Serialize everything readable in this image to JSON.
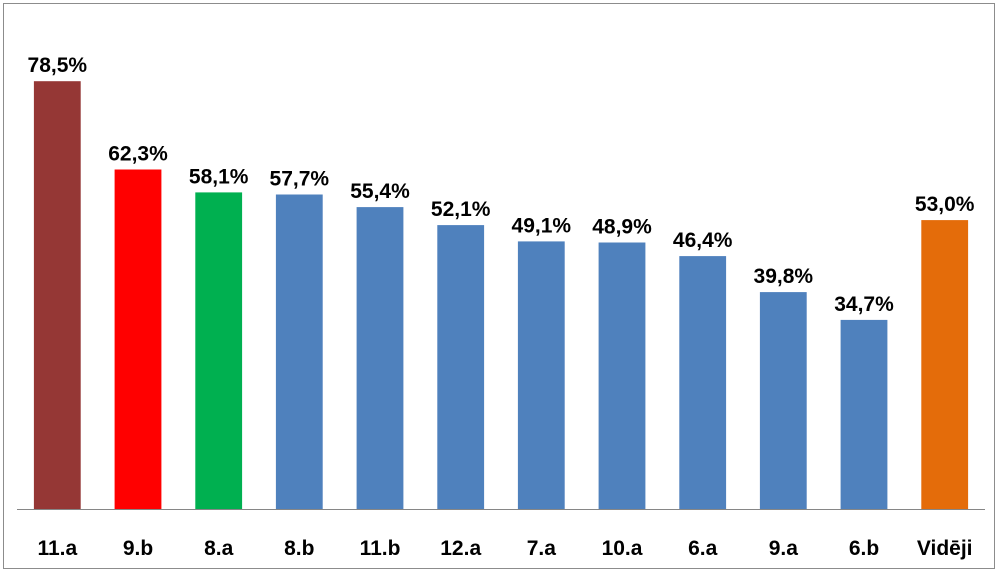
{
  "chart_data": {
    "type": "bar",
    "title": "",
    "xlabel": "",
    "ylabel": "",
    "ylim": [
      0,
      0.8
    ],
    "grid": false,
    "legend": "none",
    "categories": [
      "11.a",
      "9.b",
      "8.a",
      "8.b",
      "11.b",
      "12.a",
      "7.a",
      "10.a",
      "6.a",
      "9.a",
      "6.b",
      "Vidēji"
    ],
    "values": [
      0.785,
      0.623,
      0.581,
      0.577,
      0.554,
      0.521,
      0.491,
      0.489,
      0.464,
      0.398,
      0.347,
      0.53
    ],
    "value_labels": [
      "78,5%",
      "62,3%",
      "58,1%",
      "57,7%",
      "55,4%",
      "52,1%",
      "49,1%",
      "48,9%",
      "46,4%",
      "39,8%",
      "34,7%",
      "53,0%"
    ],
    "colors": [
      "#953735",
      "#ff0000",
      "#00b050",
      "#4f81bd",
      "#4f81bd",
      "#4f81bd",
      "#4f81bd",
      "#4f81bd",
      "#4f81bd",
      "#4f81bd",
      "#4f81bd",
      "#e46c0a"
    ],
    "axis_color": "#868686"
  }
}
